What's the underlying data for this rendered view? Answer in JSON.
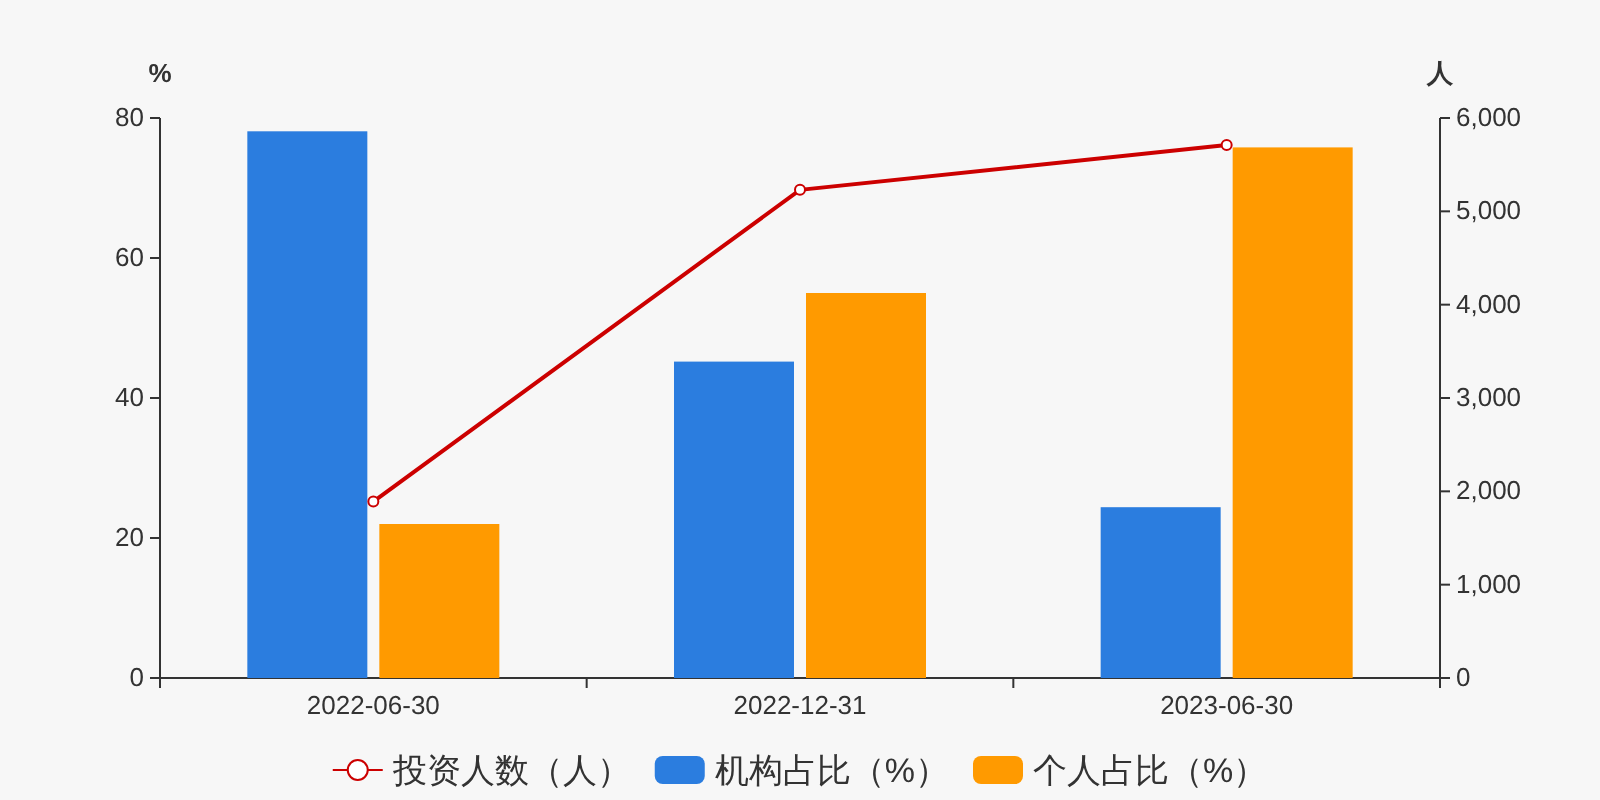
{
  "chart_data": {
    "type": "bar",
    "categories": [
      "2022-06-30",
      "2022-12-31",
      "2023-06-30"
    ],
    "ylabel": "%",
    "y2label": "人",
    "ylim": [
      0,
      80
    ],
    "yticks": [
      0,
      20,
      40,
      60,
      80
    ],
    "y2lim": [
      0,
      6000
    ],
    "y2ticks": [
      {
        "value": 0,
        "label": "0"
      },
      {
        "value": 1000,
        "label": "1,000"
      },
      {
        "value": 2000,
        "label": "2,000"
      },
      {
        "value": 3000,
        "label": "3,000"
      },
      {
        "value": 4000,
        "label": "4,000"
      },
      {
        "value": 5000,
        "label": "5,000"
      },
      {
        "value": 6000,
        "label": "6,000"
      }
    ],
    "legend": "bottom",
    "series": [
      {
        "name": "投资人数（人）",
        "type": "line",
        "axis": "y2",
        "color": "#cc0000",
        "marker": "circle",
        "values": [
          1890,
          5230,
          5710
        ]
      },
      {
        "name": "机构占比（%）",
        "color": "#2b7ddf",
        "values": [
          78.1,
          45.2,
          24.4
        ]
      },
      {
        "name": "个人占比（%）",
        "color": "#ff9a00",
        "values": [
          22.0,
          55.0,
          75.8
        ]
      }
    ]
  }
}
